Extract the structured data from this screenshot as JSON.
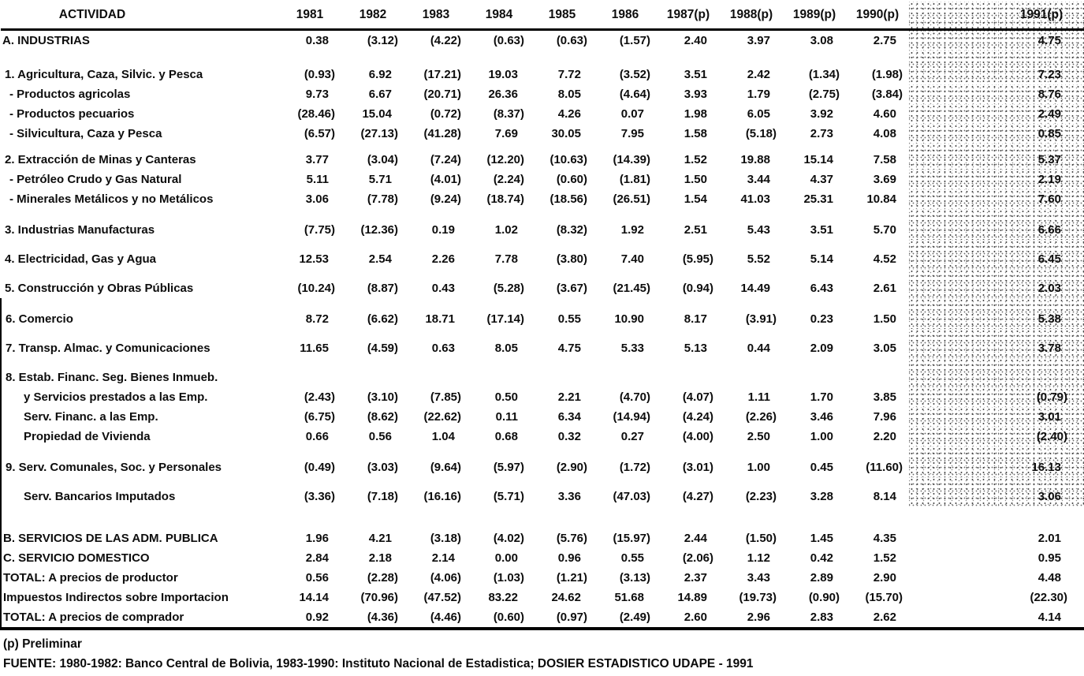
{
  "table": {
    "headers": [
      "ACTIVIDAD",
      "1981",
      "1982",
      "1983",
      "1984",
      "1985",
      "1986",
      "1987(p)",
      "1988(p)",
      "1989(p)",
      "1990(p)",
      "1991(p)"
    ],
    "rows": [
      {
        "label": "A. INDUSTRIAS",
        "kind": "section",
        "values": [
          "0.38",
          "(3.12)",
          "(4.22)",
          "(0.63)",
          "(0.63)",
          "(1.57)",
          "2.40",
          "3.97",
          "3.08",
          "2.75",
          "4.75"
        ]
      },
      {
        "label": "1. Agricultura, Caza, Silvic. y Pesca",
        "kind": "group",
        "values": [
          "(0.93)",
          "6.92",
          "(17.21)",
          "19.03",
          "7.72",
          "(3.52)",
          "3.51",
          "2.42",
          "(1.34)",
          "(1.98)",
          "7.23"
        ]
      },
      {
        "label": "- Productos agricolas",
        "kind": "dash",
        "values": [
          "9.73",
          "6.67",
          "(20.71)",
          "26.36",
          "8.05",
          "(4.64)",
          "3.93",
          "1.79",
          "(2.75)",
          "(3.84)",
          "8.76"
        ]
      },
      {
        "label": "- Productos pecuarios",
        "kind": "dash",
        "values": [
          "(28.46)",
          "15.04",
          "(0.72)",
          "(8.37)",
          "4.26",
          "0.07",
          "1.98",
          "6.05",
          "3.92",
          "4.60",
          "2.49"
        ]
      },
      {
        "label": "- Silvicultura, Caza y Pesca",
        "kind": "dash",
        "values": [
          "(6.57)",
          "(27.13)",
          "(41.28)",
          "7.69",
          "30.05",
          "7.95",
          "1.58",
          "(5.18)",
          "2.73",
          "4.08",
          "0.85"
        ]
      },
      {
        "label": "2. Extracción de Minas y Canteras",
        "kind": "group",
        "values": [
          "3.77",
          "(3.04)",
          "(7.24)",
          "(12.20)",
          "(10.63)",
          "(14.39)",
          "1.52",
          "19.88",
          "15.14",
          "7.58",
          "5.37"
        ]
      },
      {
        "label": "- Petróleo Crudo y Gas Natural",
        "kind": "dash",
        "values": [
          "5.11",
          "5.71",
          "(4.01)",
          "(2.24)",
          "(0.60)",
          "(1.81)",
          "1.50",
          "3.44",
          "4.37",
          "3.69",
          "2.19"
        ]
      },
      {
        "label": "- Minerales Metálicos y no Metálicos",
        "kind": "dash",
        "values": [
          "3.06",
          "(7.78)",
          "(9.24)",
          "(18.74)",
          "(18.56)",
          "(26.51)",
          "1.54",
          "41.03",
          "25.31",
          "10.84",
          "7.60"
        ]
      },
      {
        "label": "3. Industrias Manufacturas",
        "kind": "group",
        "values": [
          "(7.75)",
          "(12.36)",
          "0.19",
          "1.02",
          "(8.32)",
          "1.92",
          "2.51",
          "5.43",
          "3.51",
          "5.70",
          "6.66"
        ]
      },
      {
        "label": "4. Electricidad, Gas y Agua",
        "kind": "group",
        "values": [
          "12.53",
          "2.54",
          "2.26",
          "7.78",
          "(3.80)",
          "7.40",
          "(5.95)",
          "5.52",
          "5.14",
          "4.52",
          "6.45"
        ]
      },
      {
        "label": "5. Construcción y Obras Públicas",
        "kind": "group",
        "values": [
          "(10.24)",
          "(8.87)",
          "0.43",
          "(5.28)",
          "(3.67)",
          "(21.45)",
          "(0.94)",
          "14.49",
          "6.43",
          "2.61",
          "2.03"
        ]
      },
      {
        "label": "6. Comercio",
        "kind": "group",
        "values": [
          "8.72",
          "(6.62)",
          "18.71",
          "(17.14)",
          "0.55",
          "10.90",
          "8.17",
          "(3.91)",
          "0.23",
          "1.50",
          "5.38"
        ]
      },
      {
        "label": "7. Transp. Almac. y Comunicaciones",
        "kind": "group",
        "values": [
          "11.65",
          "(4.59)",
          "0.63",
          "8.05",
          "4.75",
          "5.33",
          "5.13",
          "0.44",
          "2.09",
          "3.05",
          "3.78"
        ]
      },
      {
        "label": "8. Estab. Financ. Seg. Bienes Inmueb.",
        "kind": "group",
        "values": [
          "",
          "",
          "",
          "",
          "",
          "",
          "",
          "",
          "",
          "",
          ""
        ]
      },
      {
        "label": "y Servicios prestados a las Emp.",
        "kind": "sub",
        "values": [
          "(2.43)",
          "(3.10)",
          "(7.85)",
          "0.50",
          "2.21",
          "(4.70)",
          "(4.07)",
          "1.11",
          "1.70",
          "3.85",
          "(0.79)"
        ]
      },
      {
        "label": "Serv. Financ. a las Emp.",
        "kind": "sub",
        "values": [
          "(6.75)",
          "(8.62)",
          "(22.62)",
          "0.11",
          "6.34",
          "(14.94)",
          "(4.24)",
          "(2.26)",
          "3.46",
          "7.96",
          "3.01"
        ]
      },
      {
        "label": "Propiedad de Vivienda",
        "kind": "sub",
        "values": [
          "0.66",
          "0.56",
          "1.04",
          "0.68",
          "0.32",
          "0.27",
          "(4.00)",
          "2.50",
          "1.00",
          "2.20",
          "(2.40)"
        ]
      },
      {
        "label": "9. Serv. Comunales, Soc. y Personales",
        "kind": "group",
        "values": [
          "(0.49)",
          "(3.03)",
          "(9.64)",
          "(5.97)",
          "(2.90)",
          "(1.72)",
          "(3.01)",
          "1.00",
          "0.45",
          "(11.60)",
          "16.13"
        ]
      },
      {
        "label": "Serv. Bancarios Imputados",
        "kind": "sub",
        "values": [
          "(3.36)",
          "(7.18)",
          "(16.16)",
          "(5.71)",
          "3.36",
          "(47.03)",
          "(4.27)",
          "(2.23)",
          "3.28",
          "8.14",
          "3.06"
        ]
      },
      {
        "label": "B. SERVICIOS DE LAS ADM. PUBLICA",
        "kind": "section",
        "values": [
          "1.96",
          "4.21",
          "(3.18)",
          "(4.02)",
          "(5.76)",
          "(15.97)",
          "2.44",
          "(1.50)",
          "1.45",
          "4.35",
          "2.01"
        ]
      },
      {
        "label": "C. SERVICIO DOMESTICO",
        "kind": "section",
        "values": [
          "2.84",
          "2.18",
          "2.14",
          "0.00",
          "0.96",
          "0.55",
          "(2.06)",
          "1.12",
          "0.42",
          "1.52",
          "0.95"
        ]
      },
      {
        "label": "TOTAL: A precios de productor",
        "kind": "section",
        "values": [
          "0.56",
          "(2.28)",
          "(4.06)",
          "(1.03)",
          "(1.21)",
          "(3.13)",
          "2.37",
          "3.43",
          "2.89",
          "2.90",
          "4.48"
        ]
      },
      {
        "label": "Impuestos Indirectos sobre Importacion",
        "kind": "section",
        "values": [
          "14.14",
          "(70.96)",
          "(47.52)",
          "83.22",
          "24.62",
          "51.68",
          "14.89",
          "(19.73)",
          "(0.90)",
          "(15.70)",
          "(22.30)"
        ]
      },
      {
        "label": "TOTAL: A precios de comprador",
        "kind": "section",
        "values": [
          "0.92",
          "(4.36)",
          "(4.46)",
          "(0.60)",
          "(0.97)",
          "(2.49)",
          "2.60",
          "2.96",
          "2.83",
          "2.62",
          "4.14"
        ]
      }
    ]
  },
  "footnotes": {
    "preliminar": "(p) Preliminar",
    "fuente": "FUENTE: 1980-1982: Banco Central de Bolivia, 1983-1990: Instituto Nacional de Estadistica; DOSIER ESTADISTICO UDAPE - 1991"
  }
}
